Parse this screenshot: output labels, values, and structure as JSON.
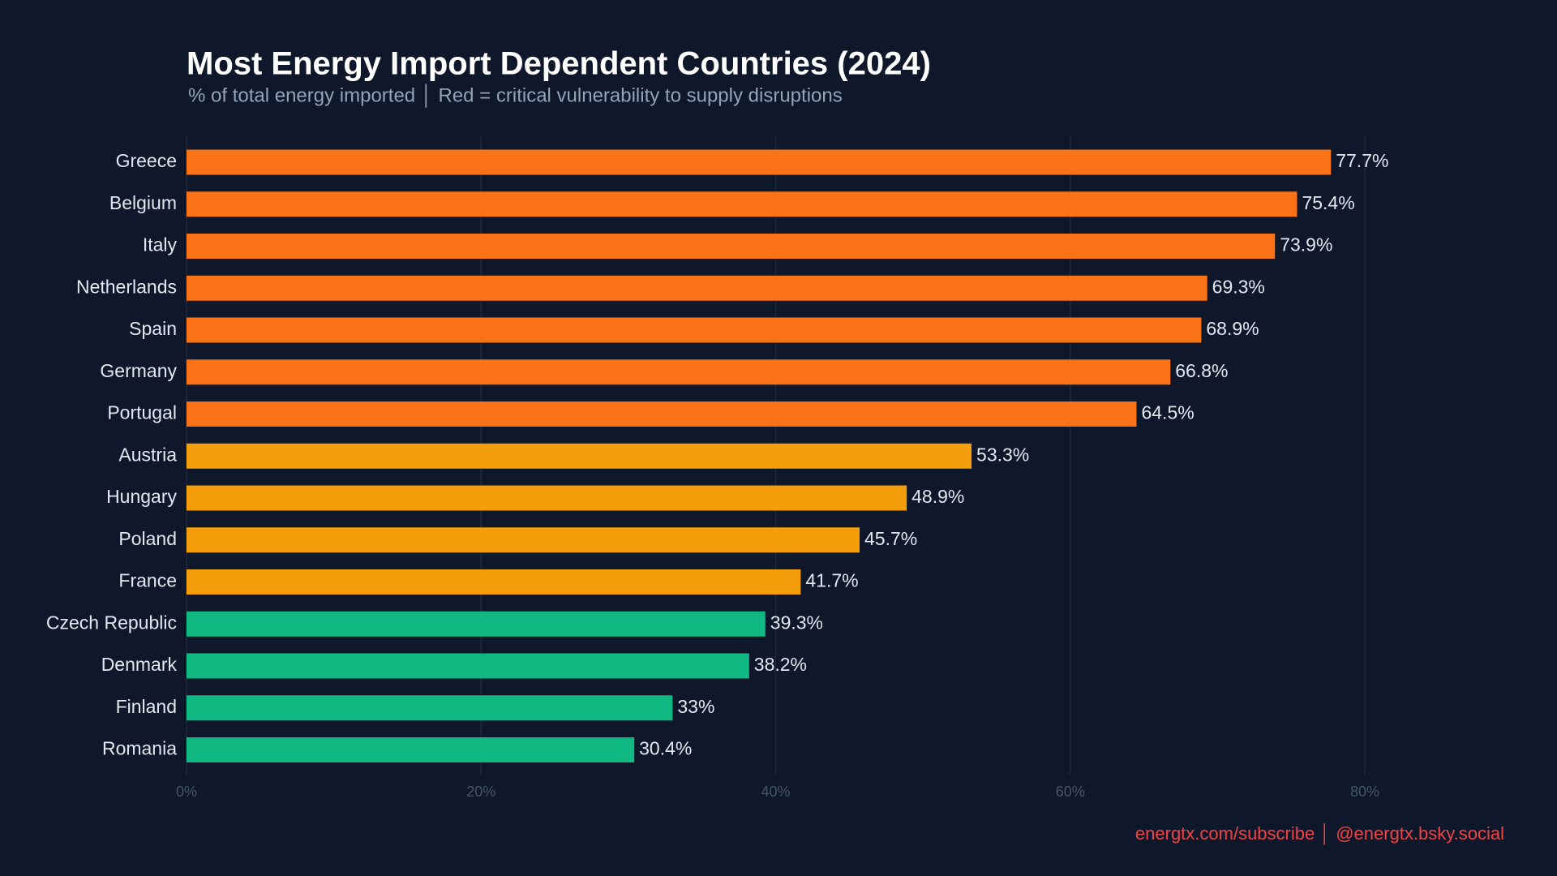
{
  "chart_data": {
    "type": "bar",
    "orientation": "horizontal",
    "title": "Most Energy Import Dependent Countries (2024)",
    "subtitle": "% of total energy imported │ Red = critical vulnerability to supply disruptions",
    "footer": "energtx.com/subscribe │ @energtx.bsky.social",
    "categories": [
      "Greece",
      "Belgium",
      "Italy",
      "Netherlands",
      "Spain",
      "Germany",
      "Portugal",
      "Austria",
      "Hungary",
      "Poland",
      "France",
      "Czech Republic",
      "Denmark",
      "Finland",
      "Romania"
    ],
    "values": [
      77.7,
      75.4,
      73.9,
      69.3,
      68.9,
      66.8,
      64.5,
      53.3,
      48.9,
      45.7,
      41.7,
      39.3,
      38.2,
      33,
      30.4
    ],
    "value_labels": [
      "77.7%",
      "75.4%",
      "73.9%",
      "69.3%",
      "68.9%",
      "66.8%",
      "64.5%",
      "53.3%",
      "48.9%",
      "45.7%",
      "41.7%",
      "39.3%",
      "38.2%",
      "33%",
      "30.4%"
    ],
    "colors": [
      "#f97316",
      "#f97316",
      "#f97316",
      "#f97316",
      "#f97316",
      "#f97316",
      "#f97316",
      "#f59e0b",
      "#f59e0b",
      "#f59e0b",
      "#f59e0b",
      "#10b981",
      "#10b981",
      "#10b981",
      "#10b981"
    ],
    "xlim": [
      0,
      80
    ],
    "xticks": [
      {
        "value": 0,
        "label": "0%"
      },
      {
        "value": 20,
        "label": "20%"
      },
      {
        "value": 40,
        "label": "40%"
      },
      {
        "value": 60,
        "label": "60%"
      },
      {
        "value": 80,
        "label": "80%"
      }
    ],
    "grid": true
  }
}
